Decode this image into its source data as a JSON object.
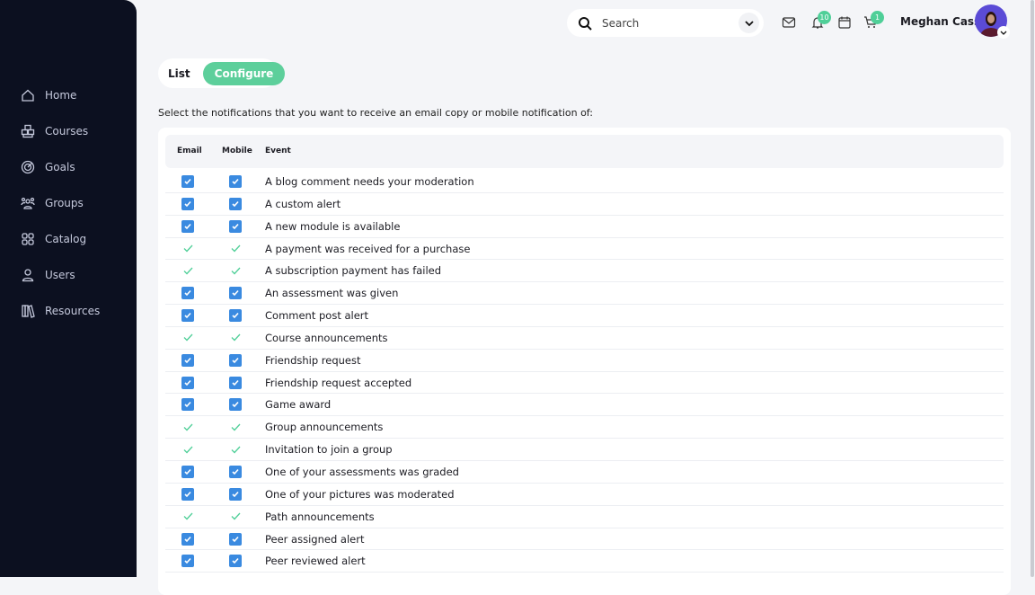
{
  "sidebar": {
    "items": [
      {
        "label": "Home",
        "icon": "home-icon"
      },
      {
        "label": "Courses",
        "icon": "cubes-icon"
      },
      {
        "label": "Goals",
        "icon": "target-icon"
      },
      {
        "label": "Groups",
        "icon": "groups-icon"
      },
      {
        "label": "Catalog",
        "icon": "grid-icon"
      },
      {
        "label": "Users",
        "icon": "user-icon"
      },
      {
        "label": "Resources",
        "icon": "books-icon"
      }
    ]
  },
  "header": {
    "search_placeholder": "Search",
    "notifications_count": "10",
    "cart_count": "1",
    "user_name": "Meghan Cass"
  },
  "tabs": {
    "list": "List",
    "configure": "Configure",
    "active": "Configure"
  },
  "intro": "Select the notifications that you want to receive an email copy or mobile notification of:",
  "table": {
    "headers": {
      "email": "Email",
      "mobile": "Mobile",
      "event": "Event"
    },
    "rows": [
      {
        "event": "A blog comment needs your moderation",
        "type": "checkbox"
      },
      {
        "event": "A custom alert",
        "type": "checkbox"
      },
      {
        "event": "A new module is available",
        "type": "checkbox"
      },
      {
        "event": "A payment was received for a purchase",
        "type": "locked"
      },
      {
        "event": "A subscription payment has failed",
        "type": "locked"
      },
      {
        "event": "An assessment was given",
        "type": "checkbox"
      },
      {
        "event": "Comment post alert",
        "type": "checkbox"
      },
      {
        "event": "Course announcements",
        "type": "locked"
      },
      {
        "event": "Friendship request",
        "type": "checkbox"
      },
      {
        "event": "Friendship request accepted",
        "type": "checkbox"
      },
      {
        "event": "Game award",
        "type": "checkbox"
      },
      {
        "event": "Group announcements",
        "type": "locked"
      },
      {
        "event": "Invitation to join a group",
        "type": "locked"
      },
      {
        "event": "One of your assessments was graded",
        "type": "checkbox"
      },
      {
        "event": "One of your pictures was moderated",
        "type": "checkbox"
      },
      {
        "event": "Path announcements",
        "type": "locked"
      },
      {
        "event": "Peer assigned alert",
        "type": "checkbox"
      },
      {
        "event": "Peer reviewed alert",
        "type": "checkbox"
      }
    ]
  },
  "colors": {
    "sidebar": "#0c1020",
    "accent": "#5dcf9b",
    "checkbox": "#3a8ae0",
    "locked_check": "#4fcf98"
  }
}
